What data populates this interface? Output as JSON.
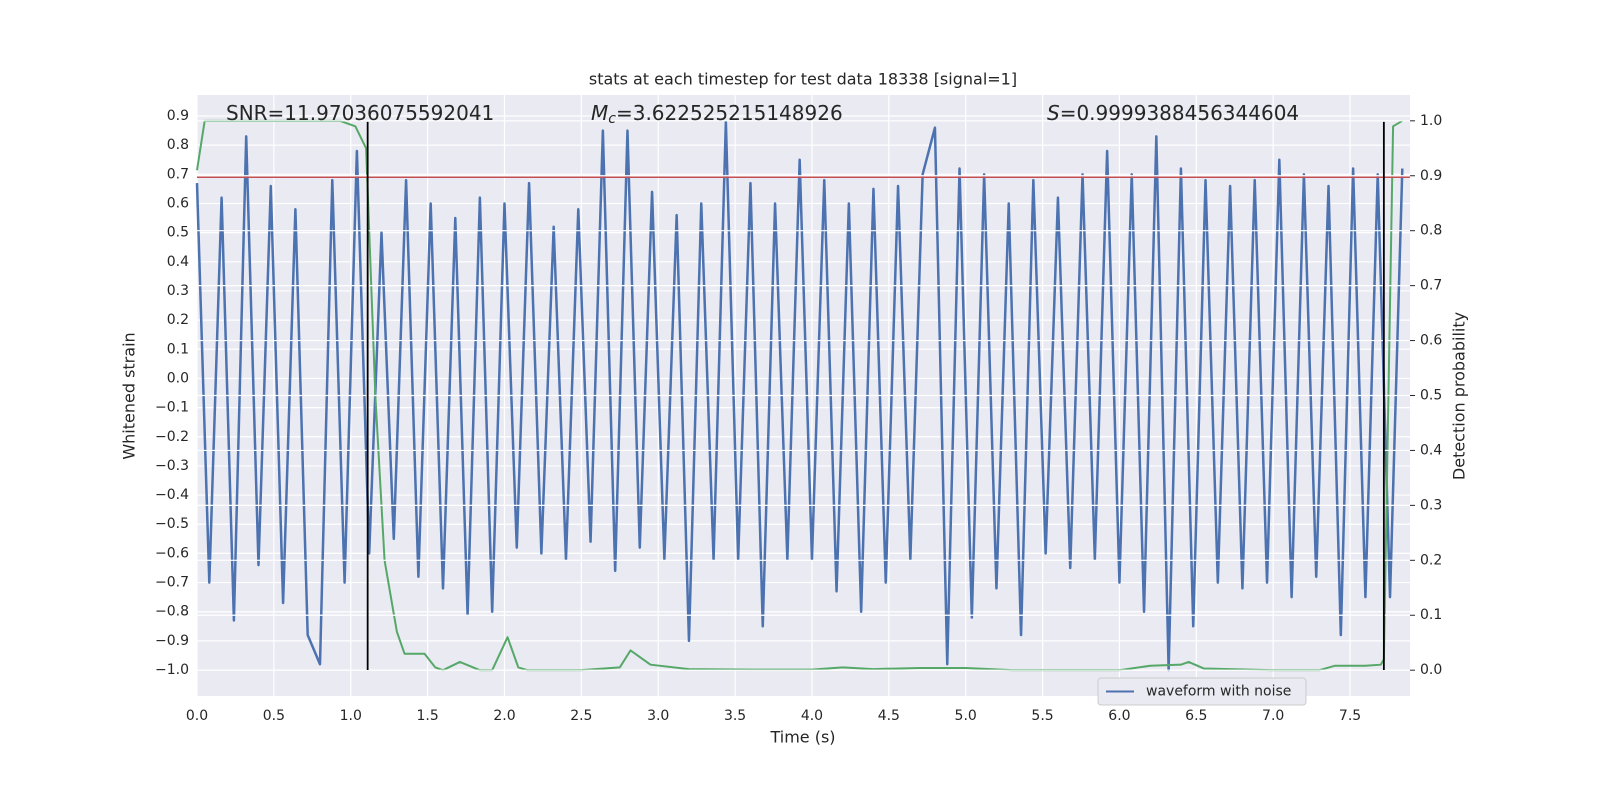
{
  "chart_data": {
    "type": "line",
    "title": "stats at each timestep for test data 18338 [signal=1]",
    "xlabel": "Time (s)",
    "ylabel": "Whitened strain",
    "y2label": "Detection probability",
    "xlim": [
      0,
      7.89
    ],
    "ylim": [
      -1.089,
      0.972
    ],
    "y2lim": [
      -0.047,
      1.047
    ],
    "xticks": [
      {
        "value": 0,
        "label": "0.0"
      },
      0.5,
      {
        "value": 1,
        "label": "1.0"
      },
      1.5,
      {
        "value": 2,
        "label": "2.0"
      },
      2.5,
      {
        "value": 3,
        "label": "3.0"
      },
      3.5,
      {
        "value": 4,
        "label": "4.0"
      },
      4.5,
      {
        "value": 5,
        "label": "5.0"
      },
      5.5,
      {
        "value": 6,
        "label": "6.0"
      },
      6.5,
      {
        "value": 7,
        "label": "7.0"
      },
      7.5
    ],
    "yticks": [
      {
        "value": -1,
        "label": "−1.0"
      },
      {
        "value": -0.9,
        "label": "−0.9"
      },
      {
        "value": -0.8,
        "label": "−0.8"
      },
      {
        "value": -0.7,
        "label": "−0.7"
      },
      {
        "value": -0.6,
        "label": "−0.6"
      },
      {
        "value": -0.5,
        "label": "−0.5"
      },
      {
        "value": -0.4,
        "label": "−0.4"
      },
      {
        "value": -0.3,
        "label": "−0.3"
      },
      {
        "value": -0.2,
        "label": "−0.2"
      },
      {
        "value": -0.1,
        "label": "−0.1"
      },
      {
        "value": 0,
        "label": "0.0"
      },
      0.1,
      0.2,
      0.3,
      0.4,
      0.5,
      0.6,
      0.7,
      0.8,
      0.9
    ],
    "y2ticks": [
      {
        "value": 0,
        "label": "0.0"
      },
      0.1,
      0.2,
      0.3,
      0.4,
      0.5,
      0.6,
      0.7,
      0.8,
      0.9,
      {
        "value": 1,
        "label": "1.0"
      }
    ],
    "grid": true,
    "legend": "lower right",
    "series": [
      {
        "name": "waveform with noise",
        "color": "#4c72b0",
        "x": [
          0,
          0.08,
          0.16,
          0.24,
          0.32,
          0.4,
          0.48,
          0.56,
          0.64,
          0.72,
          0.8,
          0.88,
          0.96,
          1.04,
          1.12,
          1.2,
          1.28,
          1.36,
          1.44,
          1.52,
          1.6,
          1.68,
          1.76,
          1.84,
          1.92,
          2,
          2.08,
          2.16,
          2.24,
          2.32,
          2.4,
          2.48,
          2.56,
          2.64,
          2.72,
          2.8,
          2.88,
          2.96,
          3.04,
          3.12,
          3.2,
          3.28,
          3.36,
          3.44,
          3.52,
          3.6,
          3.68,
          3.76,
          3.84,
          3.92,
          4,
          4.08,
          4.16,
          4.24,
          4.32,
          4.4,
          4.48,
          4.56,
          4.64,
          4.72,
          4.8,
          4.88,
          4.96,
          5.04,
          5.12,
          5.2,
          5.28,
          5.36,
          5.44,
          5.52,
          5.6,
          5.68,
          5.76,
          5.84,
          5.92,
          6,
          6.08,
          6.16,
          6.24,
          6.32,
          6.4,
          6.48,
          6.56,
          6.64,
          6.72,
          6.8,
          6.88,
          6.96,
          7.04,
          7.12,
          7.2,
          7.28,
          7.36,
          7.44,
          7.52,
          7.6,
          7.68,
          7.76,
          7.84
        ],
        "values": [
          0.67,
          -0.7,
          0.62,
          -0.83,
          0.83,
          -0.64,
          0.66,
          -0.77,
          0.58,
          -0.88,
          -0.98,
          0.68,
          -0.7,
          0.78,
          -0.6,
          0.5,
          -0.55,
          0.68,
          -0.68,
          0.6,
          -0.72,
          0.55,
          -0.81,
          0.62,
          -0.8,
          0.6,
          -0.58,
          0.67,
          -0.6,
          0.52,
          -0.62,
          0.58,
          -0.56,
          0.85,
          -0.66,
          0.85,
          -0.58,
          0.64,
          -0.62,
          0.56,
          -0.9,
          0.6,
          -0.62,
          0.88,
          -0.62,
          0.67,
          -0.85,
          0.6,
          -0.62,
          0.75,
          -0.62,
          0.68,
          -0.73,
          0.6,
          -0.8,
          0.65,
          -0.7,
          0.66,
          -0.62,
          0.7,
          0.86,
          -0.98,
          0.72,
          -0.82,
          0.7,
          -0.72,
          0.6,
          -0.88,
          0.68,
          -0.6,
          0.62,
          -0.65,
          0.7,
          -0.62,
          0.78,
          -0.7,
          0.7,
          -0.8,
          0.83,
          -1.0,
          0.72,
          -0.85,
          0.68,
          -0.7,
          0.66,
          -0.72,
          0.68,
          -0.7,
          0.75,
          -0.75,
          0.7,
          -0.68,
          0.66,
          -0.88,
          0.72,
          -0.75,
          0.7,
          -0.75,
          0.72
        ]
      },
      {
        "color": "#55a868",
        "axis": "y2",
        "x": [
          0,
          0.05,
          0.5,
          0.93,
          1.03,
          1.1,
          1.16,
          1.22,
          1.3,
          1.35,
          1.48,
          1.55,
          1.6,
          1.71,
          1.84,
          1.92,
          2.02,
          2.09,
          2.15,
          2.5,
          2.75,
          2.82,
          2.95,
          3.2,
          3.6,
          4,
          4.2,
          4.4,
          4.7,
          5,
          5.3,
          5.6,
          6,
          6.2,
          6.4,
          6.45,
          6.55,
          7,
          7.3,
          7.4,
          7.6,
          7.7,
          7.72,
          7.78,
          7.84
        ],
        "values": [
          0.91,
          1,
          1,
          1,
          0.99,
          0.95,
          0.5,
          0.2,
          0.07,
          0.03,
          0.03,
          0.005,
          0,
          0.015,
          0,
          0,
          0.06,
          0.005,
          0,
          0,
          0.005,
          0.036,
          0.01,
          0.002,
          0.001,
          0.001,
          0.005,
          0.002,
          0.004,
          0.004,
          0,
          0,
          0,
          0.008,
          0.01,
          0.015,
          0.003,
          0,
          0,
          0.008,
          0.008,
          0.01,
          0.02,
          0.99,
          1
        ]
      }
    ],
    "hline": {
      "y": 0.69,
      "color": "#c44e52"
    },
    "vlines": {
      "x": [
        1.11,
        7.72
      ],
      "ymin": -1,
      "ymax": 0.88,
      "color": "#000000"
    },
    "annotations": [
      {
        "text": "SNR=11.97036075592041"
      },
      {
        "symbol": "M",
        "subscript": "c",
        "text": "=3.622525215148926"
      },
      {
        "symbol": "S",
        "text": "=0.9999388456344604"
      }
    ]
  }
}
